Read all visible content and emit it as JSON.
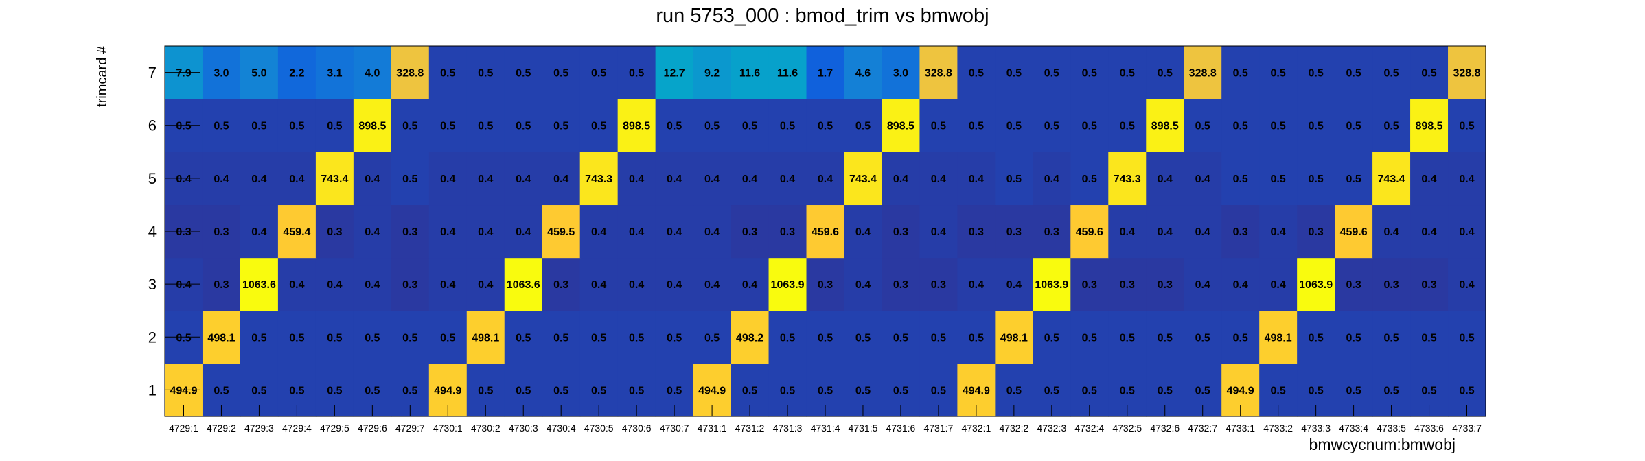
{
  "chart_data": {
    "type": "heatmap",
    "title": "run 5753_000 : bmod_trim vs bmwobj",
    "xlabel": "bmwcycnum:bmwobj",
    "ylabel": "trimcard #",
    "categories": [
      "4729:1",
      "4729:2",
      "4729:3",
      "4729:4",
      "4729:5",
      "4729:6",
      "4729:7",
      "4730:1",
      "4730:2",
      "4730:3",
      "4730:4",
      "4730:5",
      "4730:6",
      "4730:7",
      "4731:1",
      "4731:2",
      "4731:3",
      "4731:4",
      "4731:5",
      "4731:6",
      "4731:7",
      "4732:1",
      "4732:2",
      "4732:3",
      "4732:4",
      "4732:5",
      "4732:6",
      "4732:7",
      "4733:1",
      "4733:2",
      "4733:3",
      "4733:4",
      "4733:5",
      "4733:6",
      "4733:7"
    ],
    "y_categories": [
      "1",
      "2",
      "3",
      "4",
      "5",
      "6",
      "7"
    ],
    "values": [
      [
        "494.9",
        "0.5",
        "0.5",
        "0.5",
        "0.5",
        "0.5",
        "0.5",
        "494.9",
        "0.5",
        "0.5",
        "0.5",
        "0.5",
        "0.5",
        "0.5",
        "494.9",
        "0.5",
        "0.5",
        "0.5",
        "0.5",
        "0.5",
        "0.5",
        "494.9",
        "0.5",
        "0.5",
        "0.5",
        "0.5",
        "0.5",
        "0.5",
        "494.9",
        "0.5",
        "0.5",
        "0.5",
        "0.5",
        "0.5",
        "0.5"
      ],
      [
        "0.5",
        "498.1",
        "0.5",
        "0.5",
        "0.5",
        "0.5",
        "0.5",
        "0.5",
        "498.1",
        "0.5",
        "0.5",
        "0.5",
        "0.5",
        "0.5",
        "0.5",
        "498.2",
        "0.5",
        "0.5",
        "0.5",
        "0.5",
        "0.5",
        "0.5",
        "498.1",
        "0.5",
        "0.5",
        "0.5",
        "0.5",
        "0.5",
        "0.5",
        "498.1",
        "0.5",
        "0.5",
        "0.5",
        "0.5",
        "0.5"
      ],
      [
        "0.4",
        "0.3",
        "1063.6",
        "0.4",
        "0.4",
        "0.4",
        "0.3",
        "0.4",
        "0.4",
        "1063.6",
        "0.3",
        "0.4",
        "0.4",
        "0.4",
        "0.4",
        "0.4",
        "1063.9",
        "0.3",
        "0.4",
        "0.3",
        "0.3",
        "0.4",
        "0.4",
        "1063.9",
        "0.3",
        "0.3",
        "0.3",
        "0.4",
        "0.4",
        "0.4",
        "1063.9",
        "0.3",
        "0.3",
        "0.3",
        "0.4"
      ],
      [
        "0.3",
        "0.3",
        "0.4",
        "459.4",
        "0.3",
        "0.4",
        "0.3",
        "0.4",
        "0.4",
        "0.4",
        "459.5",
        "0.4",
        "0.4",
        "0.4",
        "0.4",
        "0.3",
        "0.3",
        "459.6",
        "0.4",
        "0.3",
        "0.4",
        "0.3",
        "0.3",
        "0.3",
        "459.6",
        "0.4",
        "0.4",
        "0.4",
        "0.3",
        "0.4",
        "0.3",
        "459.6",
        "0.4",
        "0.4",
        "0.4"
      ],
      [
        "0.4",
        "0.4",
        "0.4",
        "0.4",
        "743.4",
        "0.4",
        "0.5",
        "0.4",
        "0.4",
        "0.4",
        "0.4",
        "743.3",
        "0.4",
        "0.4",
        "0.4",
        "0.4",
        "0.4",
        "0.4",
        "743.4",
        "0.4",
        "0.4",
        "0.4",
        "0.5",
        "0.4",
        "0.5",
        "743.3",
        "0.4",
        "0.4",
        "0.5",
        "0.5",
        "0.5",
        "0.5",
        "743.4",
        "0.4",
        "0.4"
      ],
      [
        "0.5",
        "0.5",
        "0.5",
        "0.5",
        "0.5",
        "898.5",
        "0.5",
        "0.5",
        "0.5",
        "0.5",
        "0.5",
        "0.5",
        "898.5",
        "0.5",
        "0.5",
        "0.5",
        "0.5",
        "0.5",
        "0.5",
        "898.5",
        "0.5",
        "0.5",
        "0.5",
        "0.5",
        "0.5",
        "0.5",
        "898.5",
        "0.5",
        "0.5",
        "0.5",
        "0.5",
        "0.5",
        "0.5",
        "898.5",
        "0.5"
      ],
      [
        "7.9",
        "3.0",
        "5.0",
        "2.2",
        "3.1",
        "4.0",
        "328.8",
        "0.5",
        "0.5",
        "0.5",
        "0.5",
        "0.5",
        "0.5",
        "12.7",
        "9.2",
        "11.6",
        "11.6",
        "1.7",
        "4.6",
        "3.0",
        "328.8",
        "0.5",
        "0.5",
        "0.5",
        "0.5",
        "0.5",
        "0.5",
        "328.8",
        "0.5",
        "0.5",
        "0.5",
        "0.5",
        "0.5",
        "0.5",
        "328.8"
      ]
    ],
    "zlim": [
      0,
      1063.9
    ],
    "color_scale": [
      "#352a87",
      "#0f5cdd",
      "#1481d6",
      "#06a4ca",
      "#2eb7a4",
      "#87bf77",
      "#d1bb59",
      "#fec832",
      "#f9fb0e"
    ],
    "grid": false,
    "legend": "none"
  }
}
